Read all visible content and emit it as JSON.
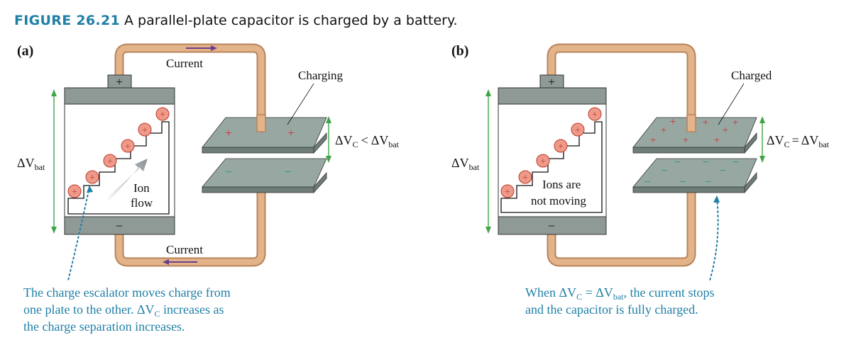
{
  "caption": {
    "figure_number": "FIGURE 26.21",
    "text": "A parallel-plate capacitor is charged by a battery."
  },
  "panel_a": {
    "label": "(a)",
    "state_label": "Charging",
    "current_top": "Current",
    "current_bottom": "Current",
    "battery_plus": "+",
    "battery_minus": "−",
    "delta_v_bat": "ΔV",
    "delta_v_bat_sub": "bat",
    "ion_flow_line1": "Ion",
    "ion_flow_line2": "flow",
    "voltage_relation": {
      "lhs": "ΔV",
      "lhs_sub": "C",
      "op": "<",
      "rhs": "ΔV",
      "rhs_sub": "bat"
    },
    "note_line1": "The charge escalator moves charge from",
    "note_line2_pre": "one plate to the other. ",
    "note_line2_dv": "ΔV",
    "note_line2_sub": "C",
    "note_line2_post": " increases as",
    "note_line3": "the charge separation increases."
  },
  "panel_b": {
    "label": "(b)",
    "state_label": "Charged",
    "battery_plus": "+",
    "battery_minus": "−",
    "delta_v_bat": "ΔV",
    "delta_v_bat_sub": "bat",
    "ions_line1": "Ions are",
    "ions_line2": "not moving",
    "voltage_relation": {
      "lhs": "ΔV",
      "lhs_sub": "C",
      "op": "=",
      "rhs": "ΔV",
      "rhs_sub": "bat"
    },
    "note_line1_pre": "When ",
    "note_line1_dv1": "ΔV",
    "note_line1_sub1": "C",
    "note_line1_eq": " = ",
    "note_line1_dv2": "ΔV",
    "note_line1_sub2": "bat",
    "note_line1_post": ", the current stops",
    "note_line2": "and the capacitor is fully charged."
  },
  "colors": {
    "wire": "#e3b48a",
    "wire_edge": "#b9835a",
    "battery_gray": "#8f9a97",
    "plate_top": "#97a8a2",
    "plate_side": "#6f7d79",
    "ion_fill": "#ee9a8a",
    "ion_edge": "#c0392b",
    "plus_red": "#d2343f",
    "minus_teal": "#1b8f8c",
    "arrow_purple": "#6b3d8c",
    "green_arrow": "#41a447",
    "note_blue": "#1f7fa6"
  }
}
